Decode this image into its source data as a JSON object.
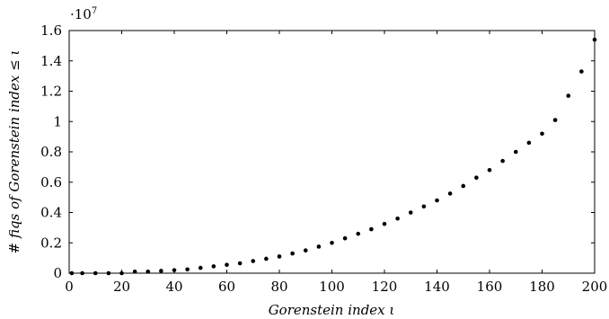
{
  "chart_data": {
    "type": "scatter",
    "title": "",
    "xlabel": "Gorenstein index ι",
    "ylabel": "# fiqs of Gorenstein index ≤ ι",
    "y_scale_prefix": "·10",
    "y_scale_exponent": "7",
    "xlim": [
      0,
      200
    ],
    "ylim": [
      0,
      1.6
    ],
    "x_ticks": [
      0,
      20,
      40,
      60,
      80,
      100,
      120,
      140,
      160,
      180,
      200
    ],
    "y_ticks": [
      0,
      0.2,
      0.4,
      0.6,
      0.8,
      1,
      1.2,
      1.4,
      1.6
    ],
    "grid": false,
    "marker_color": "#000000",
    "x": [
      1,
      5,
      10,
      15,
      20,
      25,
      30,
      35,
      40,
      45,
      50,
      55,
      60,
      65,
      70,
      75,
      80,
      85,
      90,
      95,
      100,
      105,
      110,
      115,
      120,
      125,
      130,
      135,
      140,
      145,
      150,
      155,
      160,
      165,
      170,
      175,
      180,
      185,
      190,
      195,
      200
    ],
    "y": [
      0.0,
      0.0,
      0.0,
      0.0,
      0.0,
      0.01,
      0.01,
      0.015,
      0.02,
      0.025,
      0.035,
      0.045,
      0.055,
      0.065,
      0.08,
      0.095,
      0.11,
      0.13,
      0.15,
      0.175,
      0.2,
      0.23,
      0.26,
      0.29,
      0.325,
      0.36,
      0.4,
      0.44,
      0.48,
      0.525,
      0.575,
      0.63,
      0.68,
      0.74,
      0.8,
      0.86,
      0.92,
      1.01,
      1.17,
      1.33,
      1.54
    ]
  }
}
